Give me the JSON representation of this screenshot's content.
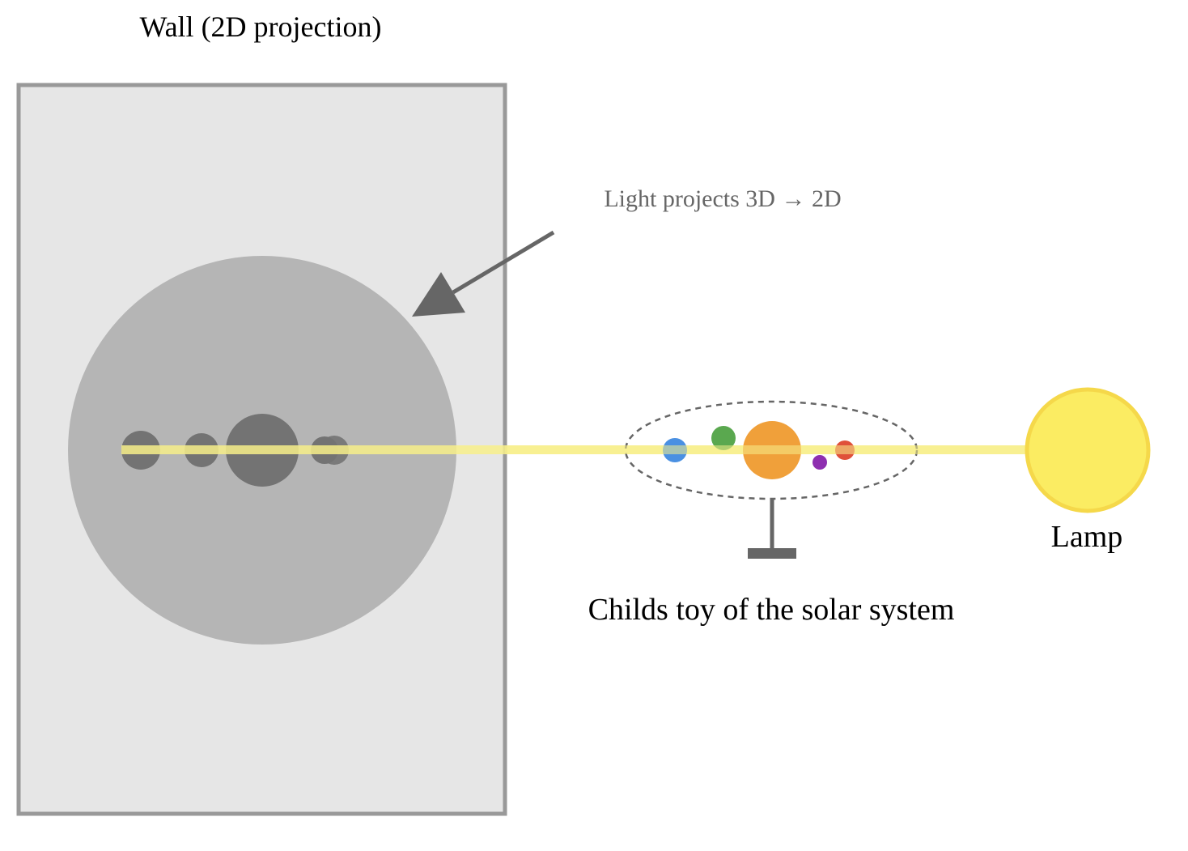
{
  "wall": {
    "title": "Wall (2D projection)"
  },
  "arrow": {
    "label": "Light projects 3D → 2D"
  },
  "toy": {
    "caption": "Childs toy of the solar system"
  },
  "lamp": {
    "label": "Lamp"
  },
  "colors": {
    "wall_fill": "#e6e6e6",
    "wall_border": "#999999",
    "projection_disc": "#b5b5b5",
    "shadow": "#737373",
    "light_beam": "#f7ee8a",
    "sun_planet": "#f0a03a",
    "planet_blue": "#4a90e2",
    "planet_green": "#5aa84f",
    "planet_purple": "#8e2fb0",
    "planet_red": "#e0503a",
    "lamp_fill": "#fbec62",
    "lamp_border": "#f5d84a",
    "stand": "#666666",
    "arrow": "#666666"
  }
}
